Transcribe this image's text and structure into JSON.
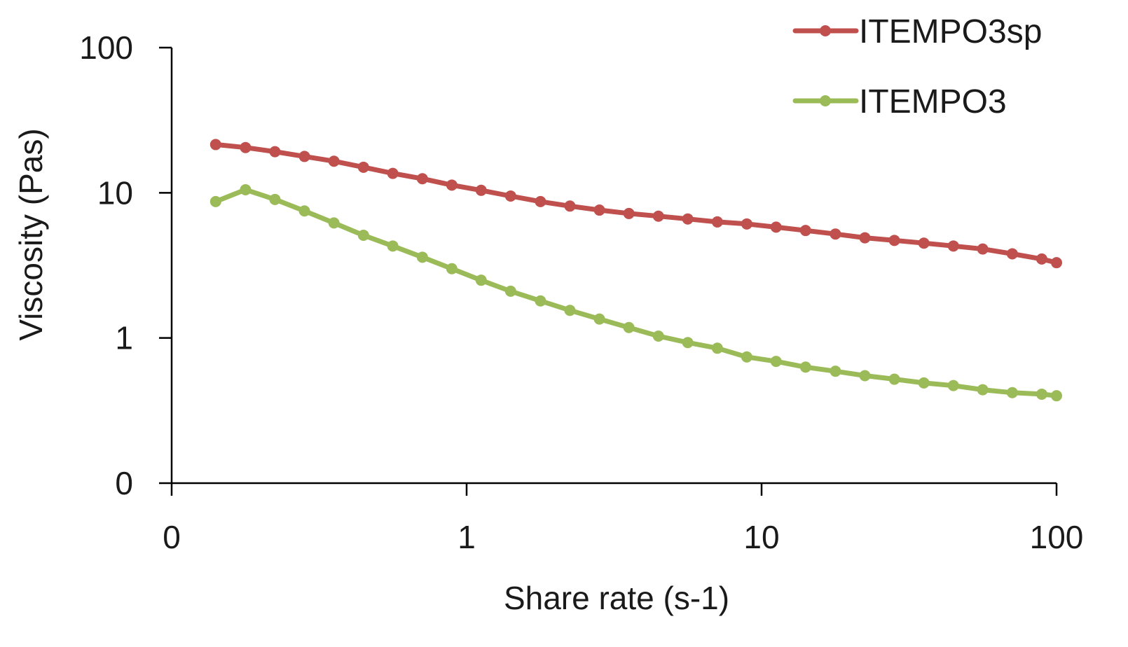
{
  "chart_data": {
    "type": "line",
    "title": "",
    "xlabel": "Share rate (s-1)",
    "ylabel": "Viscosity (Pas)",
    "x_scale": "log",
    "y_scale": "log",
    "xlim": [
      0.1,
      100
    ],
    "ylim": [
      0.1,
      100
    ],
    "x_ticks": [
      {
        "value": 0.1,
        "label": "0"
      },
      {
        "value": 1,
        "label": "1"
      },
      {
        "value": 10,
        "label": "10"
      },
      {
        "value": 100,
        "label": "100"
      }
    ],
    "y_ticks": [
      {
        "value": 0.1,
        "label": "0"
      },
      {
        "value": 1,
        "label": "1"
      },
      {
        "value": 10,
        "label": "10"
      },
      {
        "value": 100,
        "label": "100"
      }
    ],
    "grid": false,
    "legend_position": "top-right",
    "x": [
      0.141,
      0.178,
      0.224,
      0.282,
      0.355,
      0.447,
      0.562,
      0.708,
      0.891,
      1.12,
      1.41,
      1.78,
      2.24,
      2.82,
      3.55,
      4.47,
      5.62,
      7.08,
      8.91,
      11.2,
      14.1,
      17.8,
      22.4,
      28.2,
      35.5,
      44.7,
      56.2,
      70.8,
      89.1,
      100
    ],
    "series": [
      {
        "name": "ITEMPO3sp",
        "color": "#c0504d",
        "values": [
          21.5,
          20.5,
          19.2,
          17.8,
          16.5,
          15.0,
          13.6,
          12.5,
          11.3,
          10.4,
          9.5,
          8.7,
          8.1,
          7.6,
          7.2,
          6.9,
          6.6,
          6.3,
          6.1,
          5.8,
          5.5,
          5.2,
          4.9,
          4.7,
          4.5,
          4.3,
          4.1,
          3.8,
          3.5,
          3.3
        ]
      },
      {
        "name": "ITEMPO3",
        "color": "#9bbb59",
        "values": [
          8.7,
          10.5,
          9.0,
          7.5,
          6.2,
          5.1,
          4.3,
          3.6,
          3.0,
          2.5,
          2.1,
          1.8,
          1.55,
          1.35,
          1.18,
          1.03,
          0.93,
          0.85,
          0.74,
          0.69,
          0.63,
          0.59,
          0.55,
          0.52,
          0.49,
          0.47,
          0.44,
          0.42,
          0.41,
          0.4
        ]
      }
    ]
  }
}
